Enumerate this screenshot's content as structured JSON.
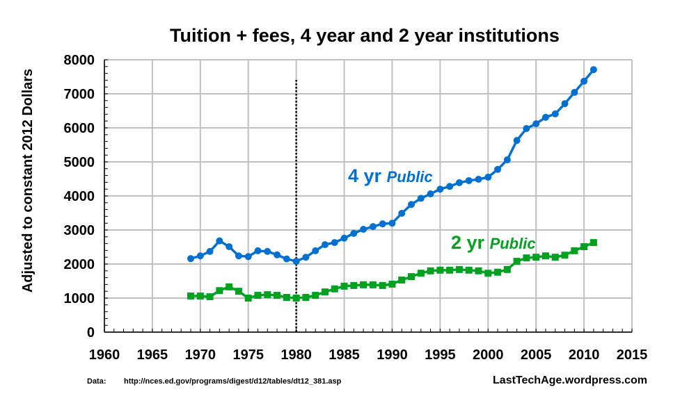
{
  "chart_data": {
    "type": "line",
    "title": "Tuition + fees, 4 year and 2 year institutions",
    "xlabel": "",
    "ylabel": "Adjusted to constant 2012 Dollars",
    "xlim": [
      1960,
      2015
    ],
    "ylim": [
      0,
      8000
    ],
    "xticks": [
      1960,
      1965,
      1970,
      1975,
      1980,
      1985,
      1990,
      1995,
      2000,
      2005,
      2010,
      2015
    ],
    "yticks": [
      0,
      1000,
      2000,
      3000,
      4000,
      5000,
      6000,
      7000,
      8000
    ],
    "grid": true,
    "reference_line_x": 1980,
    "x": [
      1969,
      1970,
      1971,
      1972,
      1973,
      1974,
      1975,
      1976,
      1977,
      1978,
      1979,
      1980,
      1981,
      1982,
      1983,
      1984,
      1985,
      1986,
      1987,
      1988,
      1989,
      1990,
      1991,
      1992,
      1993,
      1994,
      1995,
      1996,
      1997,
      1998,
      1999,
      2000,
      2001,
      2002,
      2003,
      2004,
      2005,
      2006,
      2007,
      2008,
      2009,
      2010,
      2011
    ],
    "series": [
      {
        "name": "4 yr",
        "name_suffix": "Public",
        "color": "#0070d0",
        "marker": "circle",
        "values": [
          2160,
          2240,
          2370,
          2680,
          2510,
          2240,
          2220,
          2390,
          2370,
          2270,
          2150,
          2080,
          2200,
          2390,
          2570,
          2630,
          2760,
          2900,
          3020,
          3100,
          3180,
          3200,
          3490,
          3750,
          3930,
          4060,
          4200,
          4280,
          4390,
          4450,
          4490,
          4550,
          4780,
          5060,
          5630,
          5980,
          6120,
          6310,
          6410,
          6710,
          7040,
          7370,
          7710
        ]
      },
      {
        "name": "2 yr",
        "name_suffix": "Public",
        "color": "#00a020",
        "marker": "square",
        "values": [
          1060,
          1060,
          1040,
          1220,
          1330,
          1200,
          1000,
          1080,
          1100,
          1080,
          1020,
          1000,
          1020,
          1080,
          1180,
          1270,
          1350,
          1370,
          1390,
          1390,
          1370,
          1410,
          1530,
          1630,
          1730,
          1800,
          1820,
          1820,
          1840,
          1820,
          1800,
          1730,
          1760,
          1840,
          2080,
          2180,
          2200,
          2240,
          2200,
          2260,
          2390,
          2510,
          2630
        ]
      }
    ],
    "source_label": "Data:",
    "source_url": "http://nces.ed.gov/programs/digest/d12/tables/dt12_381.asp",
    "credit": "LastTechAge.wordpress.com"
  }
}
